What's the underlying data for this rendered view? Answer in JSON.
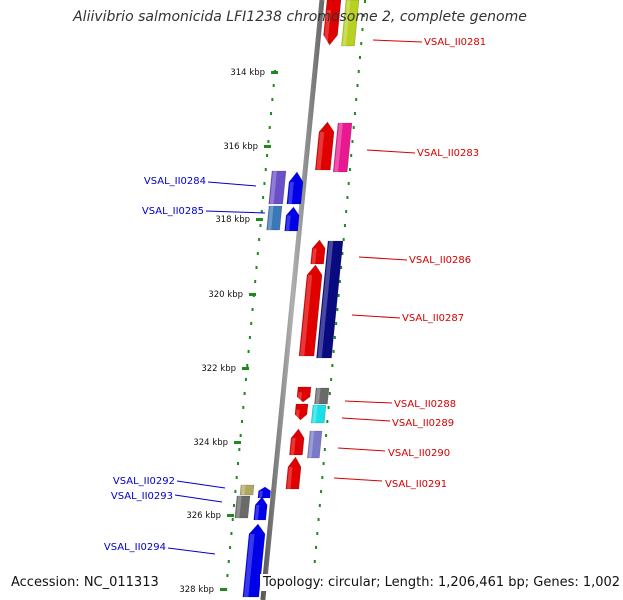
{
  "title": "Aliivibrio salmonicida LFI1238 chromosome 2, complete genome",
  "footer": {
    "accession": "Accession: NC_011313",
    "summary": "Topology: circular; Length: 1,206,461 bp; Genes: 1,002"
  },
  "colors": {
    "axis": "#808080",
    "tick": "#1f8a1f",
    "forward_label": "#d40000",
    "reverse_label": "#0000c8"
  },
  "ticks": [
    {
      "label": "314 kbp"
    },
    {
      "label": "316 kbp"
    },
    {
      "label": "318 kbp"
    },
    {
      "label": "320 kbp"
    },
    {
      "label": "322 kbp"
    },
    {
      "label": "324 kbp"
    },
    {
      "label": "326 kbp"
    },
    {
      "label": "328 kbp"
    }
  ],
  "genes": [
    {
      "label": "VSAL_II0281",
      "strand": "forward",
      "color": "#e00000",
      "icon": "gene-arrow-up-icon"
    },
    {
      "label": "VSAL_II0283",
      "strand": "forward",
      "color": "#e00000",
      "icon": "gene-arrow-up-icon"
    },
    {
      "label": "VSAL_II0284",
      "strand": "reverse",
      "color": "#0000e8",
      "icon": "gene-arrow-up-icon"
    },
    {
      "label": "VSAL_II0285",
      "strand": "reverse",
      "color": "#0000e8",
      "icon": "gene-arrow-up-icon"
    },
    {
      "label": "VSAL_II0286",
      "strand": "forward",
      "color": "#e00000",
      "icon": "gene-arrow-up-icon"
    },
    {
      "label": "VSAL_II0287",
      "strand": "forward",
      "color": "#e00000",
      "icon": "gene-arrow-up-icon"
    },
    {
      "label": "VSAL_II0288",
      "strand": "forward",
      "color": "#e00000",
      "icon": "gene-arrow-up-icon"
    },
    {
      "label": "VSAL_II0289",
      "strand": "forward",
      "color": "#e00000",
      "icon": "gene-arrow-down-icon"
    },
    {
      "label": "VSAL_II0290",
      "strand": "forward",
      "color": "#e00000",
      "icon": "gene-arrow-up-icon"
    },
    {
      "label": "VSAL_II0291",
      "strand": "forward",
      "color": "#e00000",
      "icon": "gene-arrow-up-icon"
    },
    {
      "label": "VSAL_II0292",
      "strand": "reverse",
      "color": "#0000e8",
      "icon": "gene-arrow-up-icon"
    },
    {
      "label": "VSAL_II0293",
      "strand": "reverse",
      "color": "#0000e8",
      "icon": "gene-arrow-up-icon"
    },
    {
      "label": "VSAL_II0294",
      "strand": "reverse",
      "color": "#0000e8",
      "icon": "gene-arrow-up-icon"
    }
  ]
}
